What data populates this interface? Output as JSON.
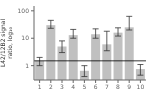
{
  "chart_data": {
    "type": "bar",
    "categories": [
      "1",
      "2",
      "3",
      "4",
      "5",
      "6",
      "7",
      "8",
      "9",
      "10"
    ],
    "values": [
      1.5,
      30,
      5,
      13,
      0.65,
      14,
      6,
      16,
      25,
      0.75
    ],
    "err_low": [
      0.5,
      7,
      2.0,
      3,
      0.25,
      4,
      2.5,
      4,
      5,
      0.3
    ],
    "err_high": [
      0.5,
      15,
      3.0,
      8,
      0.35,
      8,
      12,
      8,
      38,
      0.35
    ],
    "color": "#c0c0c0",
    "ylabel": "L42/12B2 signal\nratio, log₁₀",
    "log": "y",
    "ylim": [
      0.3,
      150
    ],
    "yticks": [
      1,
      10,
      100
    ],
    "ref_line": 1.5
  }
}
